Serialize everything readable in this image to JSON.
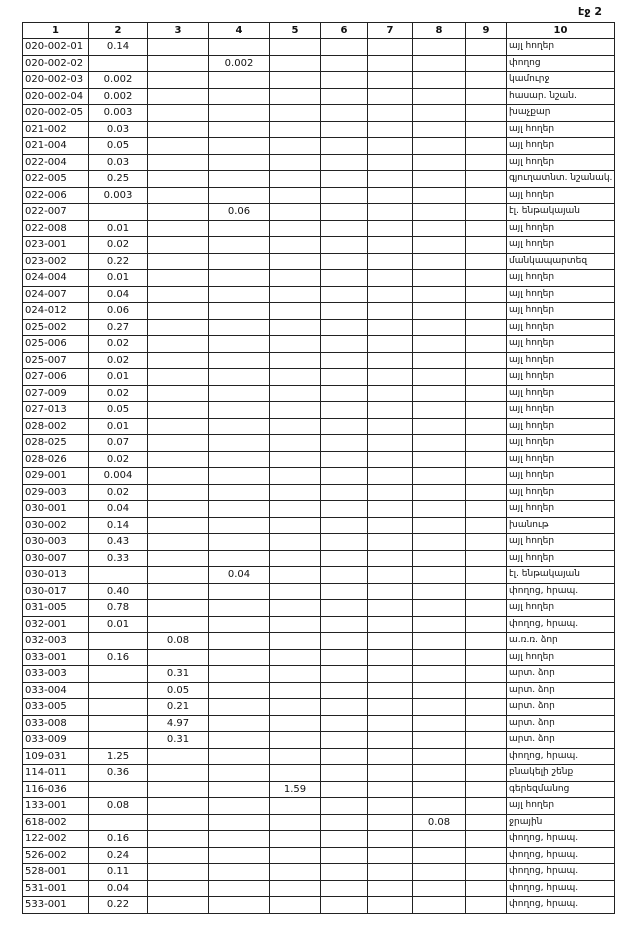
{
  "page_label": "էջ 2",
  "table": {
    "header": [
      "1",
      "2",
      "3",
      "4",
      "5",
      "6",
      "7",
      "8",
      "9",
      "10"
    ],
    "rows": [
      {
        "1": "020-002-01",
        "2": "0.14",
        "10": "այլ հողեր"
      },
      {
        "1": "020-002-02",
        "4": "0.002",
        "10": "փողոց"
      },
      {
        "1": "020-002-03",
        "2": "0.002",
        "10": "կամուրջ"
      },
      {
        "1": "020-002-04",
        "2": "0.002",
        "10": "հասար. նշան."
      },
      {
        "1": "020-002-05",
        "2": "0.003",
        "10": "խաչքար"
      },
      {
        "1": "021-002",
        "2": "0.03",
        "10": "այլ հողեր"
      },
      {
        "1": "021-004",
        "2": "0.05",
        "10": "այլ հողեր"
      },
      {
        "1": "022-004",
        "2": "0.03",
        "10": "այլ հողեր"
      },
      {
        "1": "022-005",
        "2": "0.25",
        "10": "գյուղատնտ. նշանակ."
      },
      {
        "1": "022-006",
        "2": "0.003",
        "10": "այլ հողեր"
      },
      {
        "1": "022-007",
        "4": "0.06",
        "10": "էլ. ենթակայան"
      },
      {
        "1": "022-008",
        "2": "0.01",
        "10": "այլ հողեր"
      },
      {
        "1": "023-001",
        "2": "0.02",
        "10": "այլ հողեր"
      },
      {
        "1": "023-002",
        "2": "0.22",
        "10": "մանկապարտեզ"
      },
      {
        "1": "024-004",
        "2": "0.01",
        "10": "այլ հողեր"
      },
      {
        "1": "024-007",
        "2": "0.04",
        "10": "այլ հողեր"
      },
      {
        "1": "024-012",
        "2": "0.06",
        "10": "այլ հողեր"
      },
      {
        "1": "025-002",
        "2": "0.27",
        "10": "այլ հողեր"
      },
      {
        "1": "025-006",
        "2": "0.02",
        "10": "այլ հողեր"
      },
      {
        "1": "025-007",
        "2": "0.02",
        "10": "այլ հողեր"
      },
      {
        "1": "027-006",
        "2": "0.01",
        "10": "այլ հողեր"
      },
      {
        "1": "027-009",
        "2": "0.02",
        "10": "այլ հողեր"
      },
      {
        "1": "027-013",
        "2": "0.05",
        "10": "այլ հողեր"
      },
      {
        "1": "028-002",
        "2": "0.01",
        "10": "այլ հողեր"
      },
      {
        "1": "028-025",
        "2": "0.07",
        "10": "այլ հողեր"
      },
      {
        "1": "028-026",
        "2": "0.02",
        "10": "այլ հողեր"
      },
      {
        "1": "029-001",
        "2": "0.004",
        "10": "այլ հողեր"
      },
      {
        "1": "029-003",
        "2": "0.02",
        "10": "այլ հողեր"
      },
      {
        "1": "030-001",
        "2": "0.04",
        "10": "այլ հողեր"
      },
      {
        "1": "030-002",
        "2": "0.14",
        "10": "խանութ"
      },
      {
        "1": "030-003",
        "2": "0.43",
        "10": "այլ հողեր"
      },
      {
        "1": "030-007",
        "2": "0.33",
        "10": "այլ հողեր"
      },
      {
        "1": "030-013",
        "4": "0.04",
        "10": "էլ. ենթակայան"
      },
      {
        "1": "030-017",
        "2": "0.40",
        "10": "փողոց, հրապ."
      },
      {
        "1": "031-005",
        "2": "0.78",
        "10": "այլ հողեր"
      },
      {
        "1": "032-001",
        "2": "0.01",
        "10": "փողոց, հրապ."
      },
      {
        "1": "032-003",
        "3": "0.08",
        "10": "ա.ռ.ռ. ձոր"
      },
      {
        "1": "033-001",
        "2": "0.16",
        "10": "այլ հողեր"
      },
      {
        "1": "033-003",
        "3": "0.31",
        "10": "արտ. ձոր"
      },
      {
        "1": "033-004",
        "3": "0.05",
        "10": "արտ. ձոր"
      },
      {
        "1": "033-005",
        "3": "0.21",
        "10": "արտ. ձոր"
      },
      {
        "1": "033-008",
        "3": "4.97",
        "10": "արտ. ձոր"
      },
      {
        "1": "033-009",
        "3": "0.31",
        "10": "արտ. ձոր"
      },
      {
        "1": "109-031",
        "2": "1.25",
        "10": "փողոց, հրապ."
      },
      {
        "1": "114-011",
        "2": "0.36",
        "10": "բնակելի շենք"
      },
      {
        "1": "116-036",
        "5": "1.59",
        "10": "գերեզմանոց"
      },
      {
        "1": "133-001",
        "2": "0.08",
        "10": "այլ հողեր"
      },
      {
        "1": "618-002",
        "8": "0.08",
        "10": "ջրային"
      },
      {
        "1": "122-002",
        "2": "0.16",
        "10": "փողոց, հրապ."
      },
      {
        "1": "526-002",
        "2": "0.24",
        "10": "փողոց, հրապ."
      },
      {
        "1": "528-001",
        "2": "0.11",
        "10": "փողոց, հրապ."
      },
      {
        "1": "531-001",
        "2": "0.04",
        "10": "փողոց, հրապ."
      },
      {
        "1": "533-001",
        "2": "0.22",
        "10": "փողոց, հրապ."
      }
    ]
  }
}
